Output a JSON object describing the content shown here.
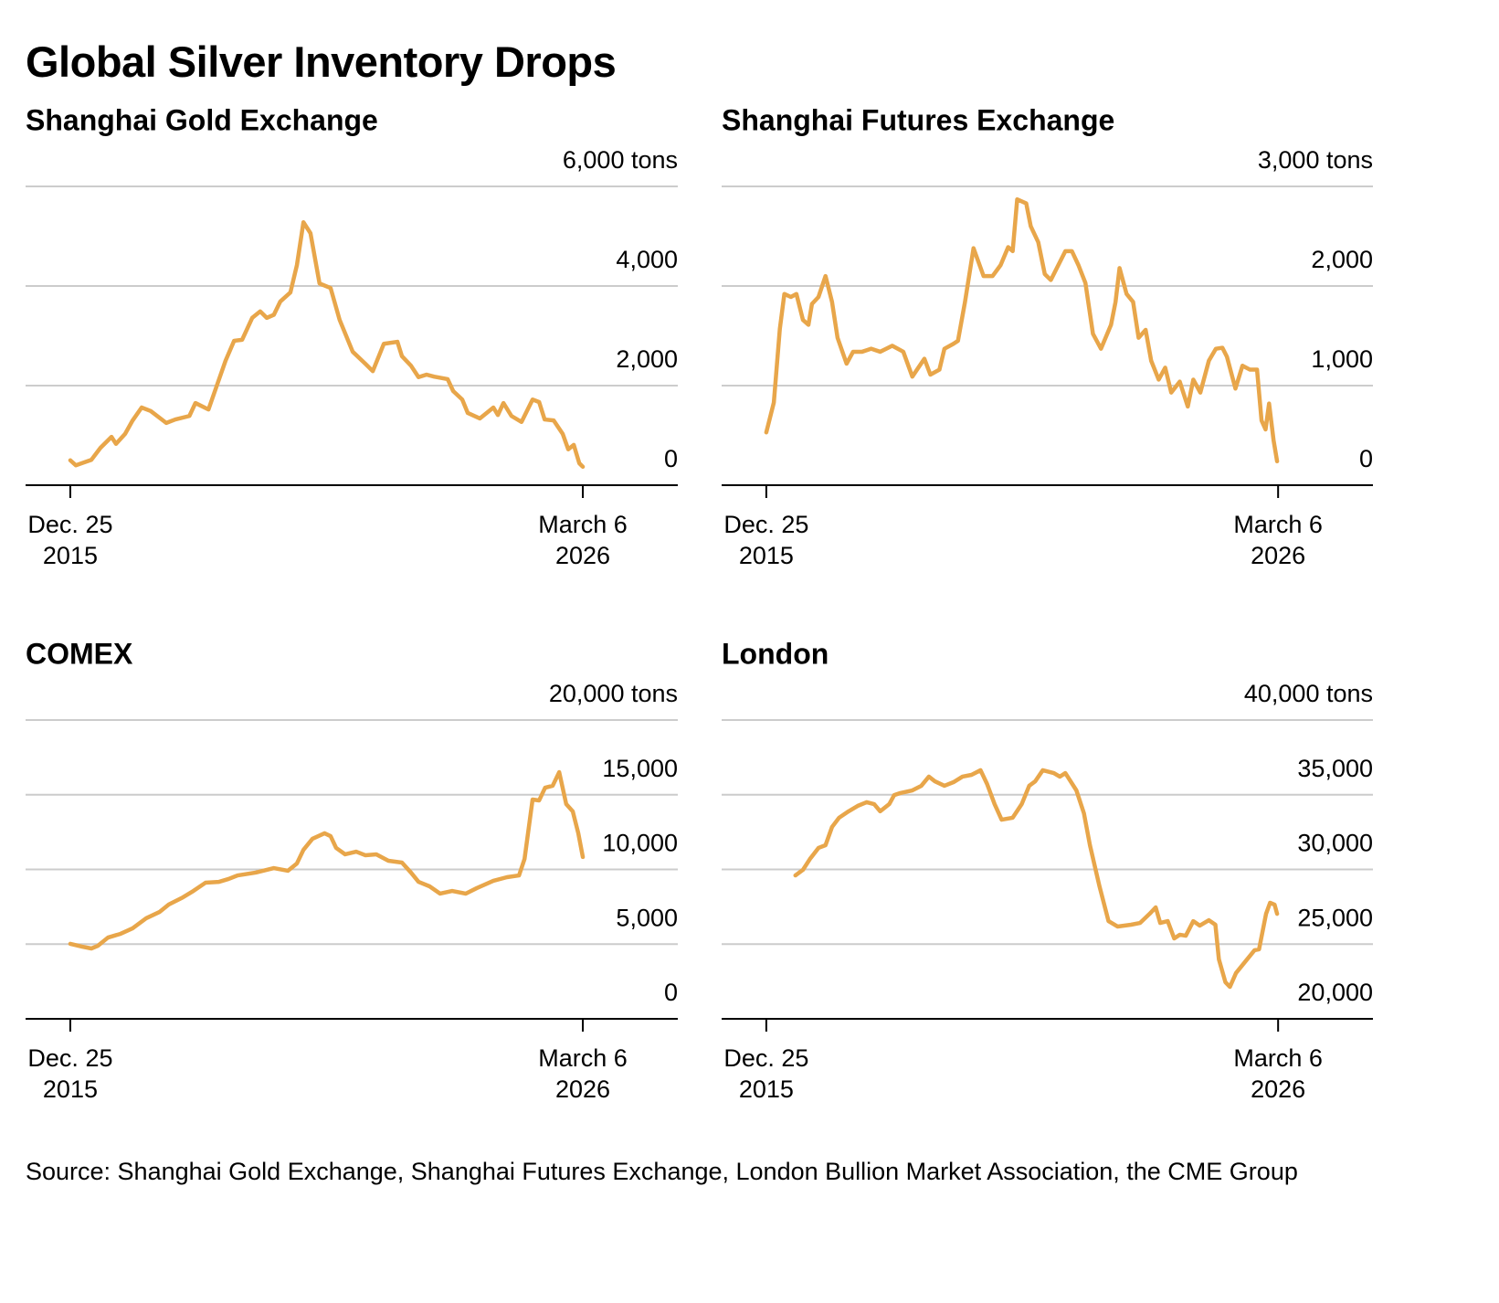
{
  "title": "Global Silver Inventory Drops",
  "source": "Source: Shanghai Gold Exchange, Shanghai Futures Exchange, London Bullion Market Association, the CME Group",
  "chart_data": [
    {
      "type": "line",
      "title": "Shanghai Gold Exchange",
      "color": "#e8a64a",
      "x": [
        2015.98,
        2016.09,
        2016.4,
        2016.58,
        2016.8,
        2016.89,
        2017.07,
        2017.22,
        2017.4,
        2017.58,
        2017.89,
        2018.07,
        2018.35,
        2018.47,
        2018.73,
        2018.91,
        2019.07,
        2019.24,
        2019.4,
        2019.6,
        2019.76,
        2019.89,
        2020.03,
        2020.16,
        2020.36,
        2020.49,
        2020.62,
        2020.76,
        2020.94,
        2021.16,
        2021.34,
        2021.6,
        2021.85,
        2022.0,
        2022.22,
        2022.49,
        2022.58,
        2022.76,
        2022.91,
        2023.07,
        2023.22,
        2023.49,
        2023.6,
        2023.78,
        2023.89,
        2024.13,
        2024.4,
        2024.49,
        2024.6,
        2024.76,
        2024.96,
        2025.18,
        2025.31,
        2025.42,
        2025.6,
        2025.78,
        2025.89,
        2026.0,
        2026.11,
        2026.18
      ],
      "values": [
        500,
        400,
        510,
        750,
        970,
        830,
        1030,
        1300,
        1560,
        1490,
        1250,
        1320,
        1390,
        1650,
        1520,
        2040,
        2500,
        2900,
        2920,
        3360,
        3490,
        3360,
        3420,
        3690,
        3870,
        4420,
        5280,
        5060,
        4050,
        3960,
        3320,
        2680,
        2440,
        2290,
        2840,
        2880,
        2590,
        2400,
        2170,
        2220,
        2180,
        2130,
        1890,
        1720,
        1450,
        1340,
        1560,
        1410,
        1650,
        1390,
        1270,
        1720,
        1670,
        1320,
        1300,
        1030,
        720,
        810,
        440,
        370
      ],
      "xlim": [
        2015.09,
        2028.07
      ],
      "xticks": [
        {
          "value": 2015.98,
          "label": "Dec. 25\n2015"
        },
        {
          "value": 2026.18,
          "label": "March 6\n2026"
        }
      ],
      "ylim": [
        0,
        6000
      ],
      "yticks": [
        0,
        {
          "value": 2000,
          "label": "2,000"
        },
        {
          "value": 4000,
          "label": "4,000"
        },
        {
          "value": 6000,
          "label": "6,000 tons"
        }
      ],
      "grid": true
    },
    {
      "type": "line",
      "title": "Shanghai Futures Exchange",
      "color": "#e8a64a",
      "x": [
        2015.98,
        2016.13,
        2016.25,
        2016.34,
        2016.47,
        2016.58,
        2016.71,
        2016.82,
        2016.89,
        2017.02,
        2017.16,
        2017.29,
        2017.4,
        2017.58,
        2017.71,
        2017.89,
        2018.07,
        2018.25,
        2018.49,
        2018.71,
        2018.89,
        2019.13,
        2019.25,
        2019.43,
        2019.53,
        2019.71,
        2019.8,
        2019.94,
        2020.11,
        2020.31,
        2020.49,
        2020.65,
        2020.8,
        2020.89,
        2020.98,
        2021.16,
        2021.25,
        2021.4,
        2021.53,
        2021.65,
        2021.8,
        2021.94,
        2022.07,
        2022.2,
        2022.34,
        2022.49,
        2022.65,
        2022.85,
        2022.94,
        2023.02,
        2023.16,
        2023.29,
        2023.4,
        2023.54,
        2023.65,
        2023.8,
        2023.93,
        2024.05,
        2024.22,
        2024.38,
        2024.49,
        2024.63,
        2024.8,
        2024.94,
        2025.07,
        2025.16,
        2025.33,
        2025.47,
        2025.62,
        2025.76,
        2025.85,
        2025.93,
        2026.0,
        2026.09,
        2026.16
      ],
      "values": [
        530,
        830,
        1570,
        1920,
        1890,
        1920,
        1660,
        1610,
        1820,
        1890,
        2100,
        1840,
        1480,
        1220,
        1340,
        1340,
        1370,
        1340,
        1400,
        1340,
        1090,
        1270,
        1110,
        1160,
        1370,
        1420,
        1450,
        1840,
        2380,
        2100,
        2100,
        2210,
        2390,
        2350,
        2870,
        2830,
        2600,
        2440,
        2120,
        2060,
        2210,
        2350,
        2350,
        2210,
        2030,
        1520,
        1370,
        1610,
        1840,
        2180,
        1920,
        1840,
        1480,
        1560,
        1250,
        1060,
        1180,
        930,
        1040,
        790,
        1060,
        930,
        1250,
        1370,
        1380,
        1290,
        970,
        1200,
        1160,
        1160,
        650,
        560,
        820,
        450,
        240
      ],
      "xlim": [
        2015.09,
        2028.07
      ],
      "xticks": [
        {
          "value": 2015.98,
          "label": "Dec. 25\n2015"
        },
        {
          "value": 2026.18,
          "label": "March 6\n2026"
        }
      ],
      "ylim": [
        0,
        3000
      ],
      "yticks": [
        0,
        {
          "value": 1000,
          "label": "1,000"
        },
        {
          "value": 2000,
          "label": "2,000"
        },
        {
          "value": 3000,
          "label": "3,000 tons"
        }
      ],
      "grid": true
    },
    {
      "type": "line",
      "title": "COMEX",
      "color": "#e8a64a",
      "x": [
        2015.98,
        2016.22,
        2016.4,
        2016.53,
        2016.73,
        2016.98,
        2017.22,
        2017.49,
        2017.76,
        2017.94,
        2018.22,
        2018.43,
        2018.67,
        2018.94,
        2019.13,
        2019.31,
        2019.67,
        2020.03,
        2020.31,
        2020.49,
        2020.62,
        2020.8,
        2021.04,
        2021.16,
        2021.27,
        2021.45,
        2021.67,
        2021.85,
        2022.07,
        2022.31,
        2022.58,
        2022.76,
        2022.91,
        2023.13,
        2023.34,
        2023.58,
        2023.85,
        2024.07,
        2024.4,
        2024.67,
        2024.91,
        2025.02,
        2025.18,
        2025.31,
        2025.43,
        2025.58,
        2025.71,
        2025.85,
        2025.98,
        2026.09,
        2026.18
      ],
      "values": [
        5020,
        4830,
        4710,
        4890,
        5440,
        5690,
        6060,
        6730,
        7160,
        7650,
        8130,
        8560,
        9110,
        9170,
        9360,
        9600,
        9790,
        10090,
        9910,
        10400,
        11310,
        12050,
        12420,
        12230,
        11440,
        11010,
        11190,
        10950,
        11010,
        10580,
        10460,
        9790,
        9170,
        8870,
        8380,
        8560,
        8380,
        8750,
        9240,
        9480,
        9600,
        10700,
        14680,
        14620,
        15470,
        15600,
        16510,
        14370,
        13880,
        12420,
        10830
      ],
      "xlim": [
        2015.09,
        2028.07
      ],
      "xticks": [
        {
          "value": 2015.98,
          "label": "Dec. 25\n2015"
        },
        {
          "value": 2026.18,
          "label": "March 6\n2026"
        }
      ],
      "ylim": [
        0,
        20000
      ],
      "yticks": [
        0,
        {
          "value": 5000,
          "label": "5,000"
        },
        {
          "value": 10000,
          "label": "10,000"
        },
        {
          "value": 15000,
          "label": "15,000"
        },
        {
          "value": 20000,
          "label": "20,000 tons"
        }
      ],
      "grid": true
    },
    {
      "type": "line",
      "title": "London",
      "color": "#e8a64a",
      "x": [
        2016.56,
        2016.71,
        2016.85,
        2017.02,
        2017.16,
        2017.29,
        2017.43,
        2017.62,
        2017.8,
        2017.98,
        2018.13,
        2018.25,
        2018.43,
        2018.53,
        2018.65,
        2018.89,
        2019.07,
        2019.22,
        2019.34,
        2019.53,
        2019.71,
        2019.89,
        2020.07,
        2020.25,
        2020.38,
        2020.53,
        2020.67,
        2020.89,
        2021.07,
        2021.22,
        2021.34,
        2021.49,
        2021.71,
        2021.83,
        2021.94,
        2022.16,
        2022.31,
        2022.43,
        2022.62,
        2022.8,
        2022.98,
        2023.25,
        2023.43,
        2023.62,
        2023.74,
        2023.83,
        2023.98,
        2024.11,
        2024.22,
        2024.34,
        2024.49,
        2024.62,
        2024.8,
        2024.93,
        2025.0,
        2025.13,
        2025.22,
        2025.34,
        2025.53,
        2025.71,
        2025.8,
        2025.94,
        2026.02,
        2026.11,
        2026.16
      ],
      "values": [
        29600,
        29970,
        30700,
        31440,
        31620,
        32840,
        33460,
        33890,
        34250,
        34500,
        34370,
        33890,
        34370,
        34980,
        35110,
        35290,
        35600,
        36210,
        35900,
        35600,
        35840,
        36210,
        36330,
        36640,
        35720,
        34370,
        33330,
        33460,
        34370,
        35600,
        35900,
        36640,
        36450,
        36210,
        36450,
        35290,
        33760,
        31620,
        28870,
        26540,
        26180,
        26300,
        26420,
        27030,
        27460,
        26420,
        26540,
        25380,
        25630,
        25560,
        26540,
        26240,
        26600,
        26300,
        23980,
        22450,
        22140,
        23060,
        23850,
        24590,
        24650,
        27030,
        27770,
        27640,
        27030
      ],
      "xlim": [
        2015.09,
        2028.07
      ],
      "xticks": [
        {
          "value": 2015.98,
          "label": "Dec. 25\n2015"
        },
        {
          "value": 2026.18,
          "label": "March 6\n2026"
        }
      ],
      "ylim": [
        20000,
        40000
      ],
      "yticks": [
        {
          "value": 20000,
          "label": "20,000"
        },
        {
          "value": 25000,
          "label": "25,000"
        },
        {
          "value": 30000,
          "label": "30,000"
        },
        {
          "value": 35000,
          "label": "35,000"
        },
        {
          "value": 40000,
          "label": "40,000 tons"
        }
      ],
      "grid": true
    }
  ]
}
